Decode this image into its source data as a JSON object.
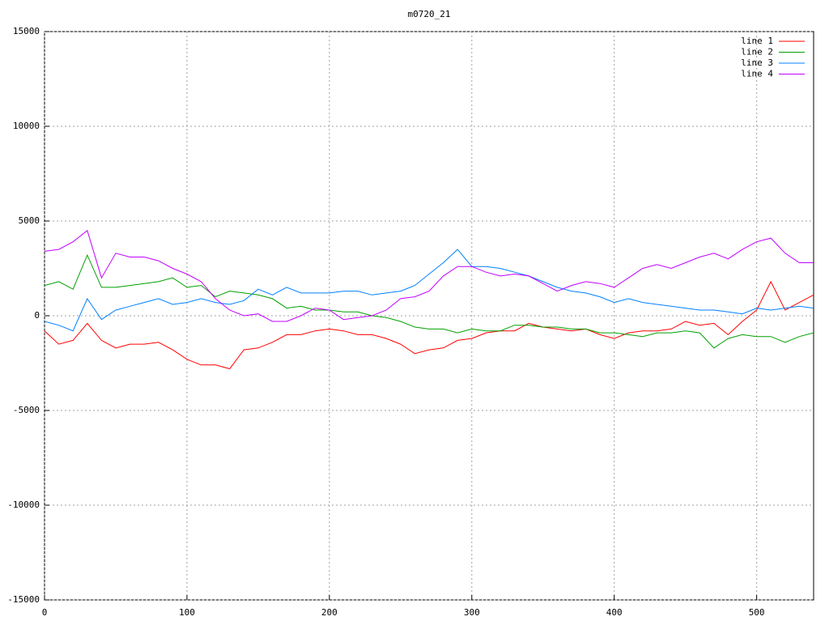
{
  "chart_data": {
    "type": "line",
    "title": "m0720_21",
    "x": [
      0,
      10,
      20,
      30,
      40,
      50,
      60,
      70,
      80,
      90,
      100,
      110,
      120,
      130,
      140,
      150,
      160,
      170,
      180,
      190,
      200,
      210,
      220,
      230,
      240,
      250,
      260,
      270,
      280,
      290,
      300,
      310,
      320,
      330,
      340,
      350,
      360,
      370,
      380,
      390,
      400,
      410,
      420,
      430,
      440,
      450,
      460,
      470,
      480,
      490,
      500,
      510,
      520,
      530,
      540
    ],
    "series": [
      {
        "name": "line 1",
        "color": "#ff0000",
        "values": [
          -800,
          -1500,
          -1300,
          -400,
          -1300,
          -1700,
          -1500,
          -1500,
          -1400,
          -1800,
          -2300,
          -2600,
          -2600,
          -2800,
          -1800,
          -1700,
          -1400,
          -1000,
          -1000,
          -800,
          -700,
          -800,
          -1000,
          -1000,
          -1200,
          -1500,
          -2000,
          -1800,
          -1700,
          -1300,
          -1200,
          -900,
          -800,
          -800,
          -400,
          -600,
          -700,
          -800,
          -700,
          -1000,
          -1200,
          -900,
          -800,
          -800,
          -700,
          -300,
          -500,
          -400,
          -1000,
          -300,
          300,
          1800,
          300,
          700,
          1100
        ]
      },
      {
        "name": "line 2",
        "color": "#00a000",
        "values": [
          1600,
          1800,
          1400,
          3200,
          1500,
          1500,
          1600,
          1700,
          1800,
          2000,
          1500,
          1600,
          1000,
          1300,
          1200,
          1100,
          900,
          400,
          500,
          300,
          300,
          200,
          200,
          0,
          -100,
          -300,
          -600,
          -700,
          -700,
          -900,
          -700,
          -800,
          -800,
          -500,
          -500,
          -600,
          -600,
          -700,
          -700,
          -900,
          -900,
          -1000,
          -1100,
          -900,
          -900,
          -800,
          -900,
          -1700,
          -1200,
          -1000,
          -1100,
          -1100,
          -1400,
          -1100,
          -900
        ]
      },
      {
        "name": "line 3",
        "color": "#0080ff",
        "values": [
          -300,
          -500,
          -800,
          900,
          -200,
          300,
          500,
          700,
          900,
          600,
          700,
          900,
          700,
          600,
          800,
          1400,
          1100,
          1500,
          1200,
          1200,
          1200,
          1300,
          1300,
          1100,
          1200,
          1300,
          1600,
          2200,
          2800,
          3500,
          2600,
          2600,
          2500,
          2300,
          2100,
          1800,
          1500,
          1300,
          1200,
          1000,
          700,
          900,
          700,
          600,
          500,
          400,
          300,
          300,
          200,
          100,
          400,
          300,
          400,
          500,
          400
        ]
      },
      {
        "name": "line 4",
        "color": "#c000ff",
        "values": [
          3400,
          3500,
          3900,
          4500,
          2000,
          3300,
          3100,
          3100,
          2900,
          2500,
          2200,
          1800,
          900,
          300,
          0,
          100,
          -300,
          -300,
          0,
          400,
          300,
          -200,
          -100,
          0,
          300,
          900,
          1000,
          1300,
          2100,
          2600,
          2600,
          2300,
          2100,
          2200,
          2100,
          1700,
          1300,
          1600,
          1800,
          1700,
          1500,
          2000,
          2500,
          2700,
          2500,
          2800,
          3100,
          3300,
          3000,
          3500,
          3900,
          4100,
          3300,
          2800,
          2800
        ]
      }
    ],
    "xlim": [
      0,
      540
    ],
    "ylim": [
      -15000,
      15000
    ],
    "xticks": [
      0,
      100,
      200,
      300,
      400,
      500
    ],
    "yticks": [
      -15000,
      -10000,
      -5000,
      0,
      5000,
      10000,
      15000
    ],
    "grid": true
  }
}
